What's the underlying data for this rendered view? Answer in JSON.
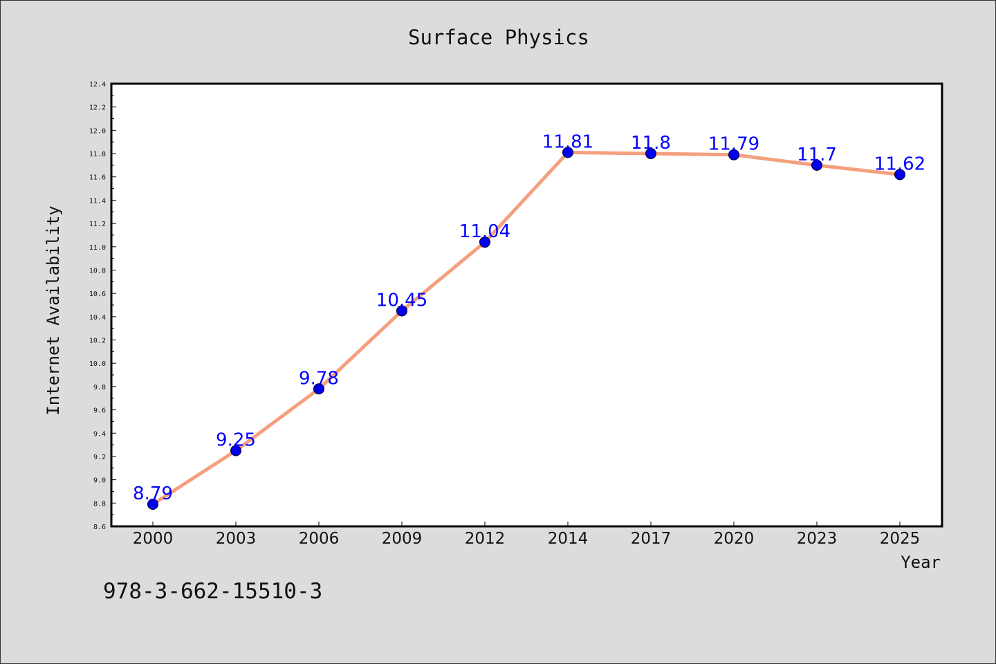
{
  "chart_data": {
    "type": "line",
    "title": "Surface Physics",
    "xlabel": "Year",
    "ylabel": "Internet Availability",
    "categories": [
      "2000",
      "2003",
      "2006",
      "2009",
      "2012",
      "2014",
      "2017",
      "2020",
      "2023",
      "2025"
    ],
    "series": [
      {
        "values": [
          8.79,
          9.25,
          9.78,
          10.45,
          11.04,
          11.81,
          11.8,
          11.79,
          11.7,
          11.62
        ]
      }
    ],
    "data_labels": [
      "8.79",
      "9.25",
      "9.78",
      "10.45",
      "11.04",
      "11.81",
      "11.8",
      "11.79",
      "11.7",
      "11.62"
    ],
    "ylim": [
      8.6,
      12.4
    ],
    "yticks": [
      "8.6",
      "8.8",
      "9.0",
      "9.2",
      "9.4",
      "9.6",
      "9.8",
      "10.0",
      "10.2",
      "10.4",
      "10.6",
      "10.8",
      "11.0",
      "11.2",
      "11.4",
      "11.6",
      "11.8",
      "12.0",
      "12.2",
      "12.4"
    ],
    "grid": false,
    "colors": {
      "line": "#f4a07f",
      "marker": "#0000ee",
      "label": "#0000ff"
    }
  },
  "footer": {
    "isbn": "978-3-662-15510-3"
  }
}
